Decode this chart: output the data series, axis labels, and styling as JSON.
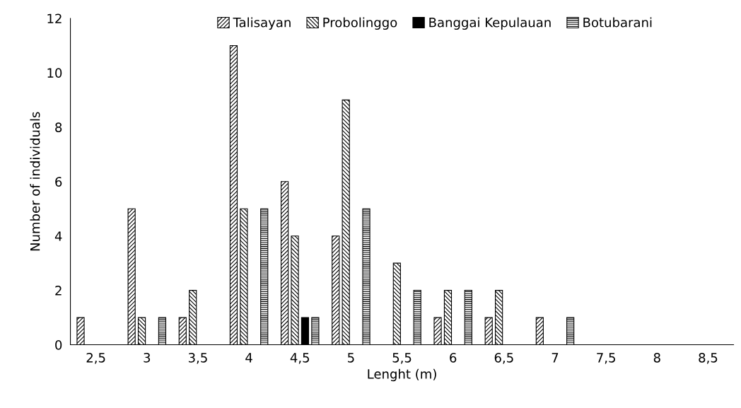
{
  "chart_data": {
    "type": "bar",
    "xlabel": "Lenght (m)",
    "ylabel": "Number of individuals",
    "categories": [
      "2,5",
      "3",
      "3,5",
      "4",
      "4,5",
      "5",
      "5,5",
      "6",
      "6,5",
      "7",
      "7,5",
      "8",
      "8,5"
    ],
    "series": [
      {
        "name": "Talisayan",
        "color": "#000000",
        "values": [
          1,
          5,
          1,
          11,
          6,
          4,
          0,
          1,
          1,
          1,
          0,
          0,
          0
        ]
      },
      {
        "name": "Probolinggo",
        "color": "#000000",
        "values": [
          0,
          1,
          2,
          5,
          4,
          9,
          3,
          2,
          2,
          0,
          0,
          0,
          0
        ]
      },
      {
        "name": "Banggai Kepulauan",
        "color": "#000000",
        "values": [
          0,
          0,
          0,
          0,
          1,
          0,
          0,
          0,
          0,
          0,
          0,
          0,
          0
        ]
      },
      {
        "name": "Botubarani",
        "color": "#000000",
        "values": [
          0,
          1,
          0,
          5,
          1,
          5,
          2,
          2,
          0,
          1,
          0,
          0,
          0
        ]
      }
    ],
    "ylim": [
      0,
      12
    ],
    "yticks": [
      0,
      2,
      4,
      6,
      8,
      10,
      12
    ],
    "grid": false,
    "legend": "top"
  }
}
